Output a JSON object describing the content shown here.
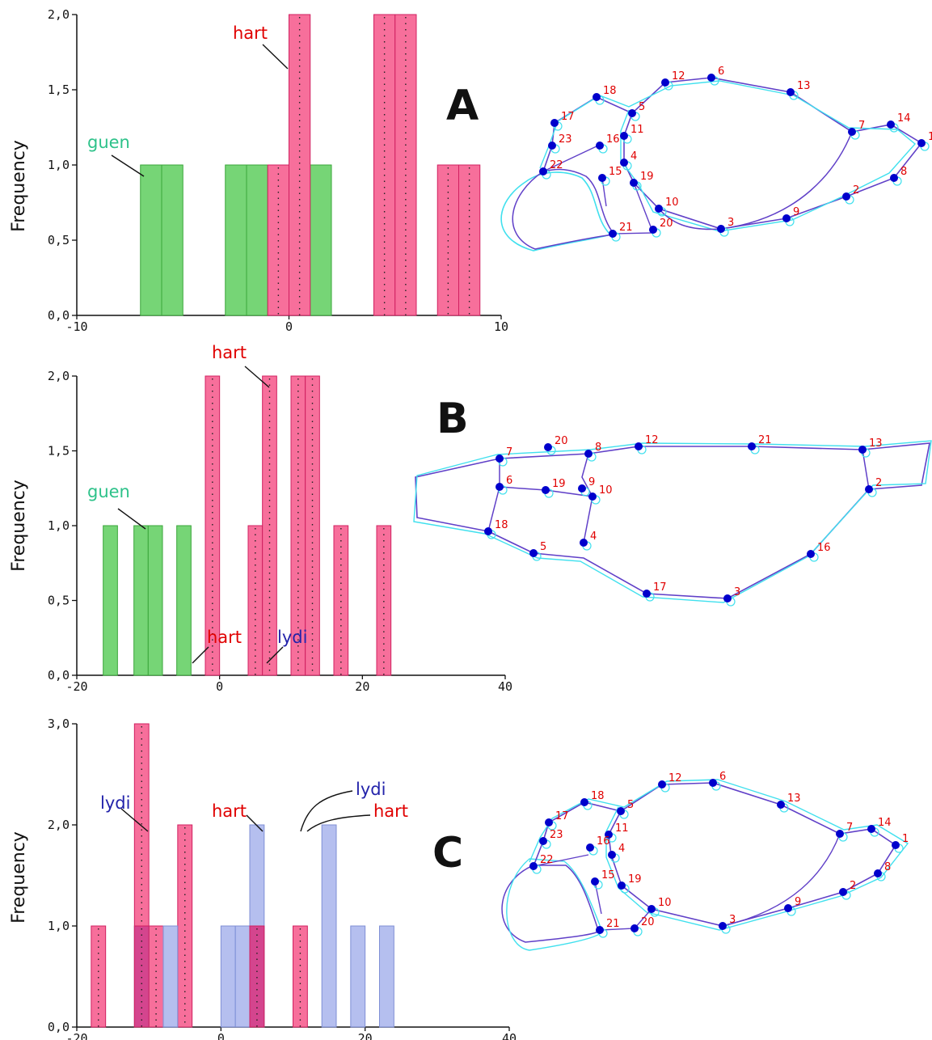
{
  "colors": {
    "green": "#76d576",
    "green_edge": "#3aa63a",
    "pink": "#f76f9b",
    "pink_edge": "#d02060",
    "blue": "#a8b4ec",
    "blue_edge": "#7f8fd6",
    "overlap": "#d4458e",
    "landmark": "#0000cc",
    "landmark_label": "#e00000",
    "outline_mean": "#6040c8",
    "outline_specimen": "#40e0ee",
    "annot_green": "#2ec28a",
    "annot_red": "#e00000",
    "annot_blue": "#2222aa"
  },
  "chart_data": [
    {
      "panel": "A",
      "type": "bar",
      "ylabel": "Frequency",
      "xlim": [
        -10,
        10
      ],
      "ylim": [
        0,
        2
      ],
      "xticks": [
        "-10",
        "0",
        "10"
      ],
      "yticks": [
        "0,0",
        "0,5",
        "1,0",
        "1,5",
        "2,0"
      ],
      "bin_width": 1,
      "series": [
        {
          "name": "guen",
          "color": "green",
          "bins": [
            {
              "x": -7,
              "y": 1
            },
            {
              "x": -6,
              "y": 1
            },
            {
              "x": -3,
              "y": 1
            },
            {
              "x": -2,
              "y": 1
            },
            {
              "x": -1,
              "y": 1
            },
            {
              "x": 1,
              "y": 1
            }
          ]
        },
        {
          "name": "hart",
          "color": "pink",
          "bins": [
            {
              "x": -1,
              "y": 1
            },
            {
              "x": 0,
              "y": 2
            },
            {
              "x": 4,
              "y": 2
            },
            {
              "x": 5,
              "y": 2
            },
            {
              "x": 7,
              "y": 1
            },
            {
              "x": 8,
              "y": 1
            }
          ]
        }
      ],
      "annotations": [
        {
          "text": "hart",
          "color": "annot_red"
        },
        {
          "text": "guen",
          "color": "annot_green"
        }
      ]
    },
    {
      "panel": "B",
      "type": "bar",
      "ylabel": "Frequency",
      "xlim": [
        -20,
        40
      ],
      "ylim": [
        0,
        2
      ],
      "xticks": [
        "-20",
        "0",
        "20",
        "40"
      ],
      "yticks": [
        "0,0",
        "0,5",
        "1,0",
        "1,5",
        "2,0"
      ],
      "bin_width": 2,
      "series": [
        {
          "name": "guen",
          "color": "green",
          "bins": [
            {
              "x": -16.3,
              "y": 1
            },
            {
              "x": -12,
              "y": 1
            },
            {
              "x": -10,
              "y": 1
            },
            {
              "x": -6,
              "y": 1
            }
          ]
        },
        {
          "name": "hart",
          "color": "pink",
          "bins": [
            {
              "x": -2,
              "y": 2
            },
            {
              "x": 4,
              "y": 1
            },
            {
              "x": 6,
              "y": 2
            },
            {
              "x": 10,
              "y": 2
            },
            {
              "x": 12,
              "y": 2
            },
            {
              "x": 16,
              "y": 1
            },
            {
              "x": 22,
              "y": 1
            }
          ]
        }
      ],
      "annotations": [
        {
          "text": "hart",
          "color": "annot_red"
        },
        {
          "text": "guen",
          "color": "annot_green"
        }
      ]
    },
    {
      "panel": "C",
      "type": "bar",
      "ylabel": "Frequency",
      "xlim": [
        -20,
        40
      ],
      "ylim": [
        0,
        3
      ],
      "xticks": [
        "-20",
        "0",
        "20",
        "40"
      ],
      "yticks": [
        "0,0",
        "1,0",
        "2,0",
        "3,0"
      ],
      "bin_width": 2,
      "series": [
        {
          "name": "hart",
          "color": "pink",
          "bins": [
            {
              "x": -18,
              "y": 1
            },
            {
              "x": -12,
              "y": 3
            },
            {
              "x": -10,
              "y": 1
            },
            {
              "x": -6,
              "y": 2
            },
            {
              "x": 4,
              "y": 1
            },
            {
              "x": 10,
              "y": 1
            }
          ]
        },
        {
          "name": "lydi",
          "color": "blue",
          "bins": [
            {
              "x": -12,
              "y": 1
            },
            {
              "x": -8,
              "y": 1
            },
            {
              "x": 0,
              "y": 1
            },
            {
              "x": 2,
              "y": 1
            },
            {
              "x": 4,
              "y": 2
            },
            {
              "x": 14,
              "y": 2
            },
            {
              "x": 18,
              "y": 1
            },
            {
              "x": 22,
              "y": 1
            }
          ]
        }
      ],
      "annotations": [
        {
          "text": "hart",
          "color": "annot_red"
        },
        {
          "text": "lydi",
          "color": "annot_blue"
        },
        {
          "text": "lydi",
          "color": "annot_blue"
        },
        {
          "text": "hart",
          "color": "annot_red"
        },
        {
          "text": "lydi",
          "color": "annot_blue"
        },
        {
          "text": "hart",
          "color": "annot_red"
        }
      ]
    }
  ],
  "shape_diagrams": [
    {
      "panel": "A",
      "landmarks": [
        "1",
        "2",
        "3",
        "4",
        "5",
        "6",
        "7",
        "8",
        "9",
        "10",
        "11",
        "12",
        "13",
        "14",
        "15",
        "16",
        "17",
        "18",
        "19",
        "20",
        "21",
        "22",
        "23"
      ]
    },
    {
      "panel": "B",
      "landmarks": [
        "2",
        "3",
        "4",
        "5",
        "6",
        "7",
        "8",
        "9",
        "10",
        "12",
        "13",
        "16",
        "17",
        "18",
        "19",
        "20",
        "21"
      ]
    },
    {
      "panel": "C",
      "landmarks": [
        "1",
        "2",
        "3",
        "4",
        "5",
        "6",
        "7",
        "8",
        "9",
        "10",
        "11",
        "12",
        "13",
        "14",
        "15",
        "16",
        "17",
        "18",
        "19",
        "20",
        "21",
        "22",
        "23"
      ]
    }
  ]
}
